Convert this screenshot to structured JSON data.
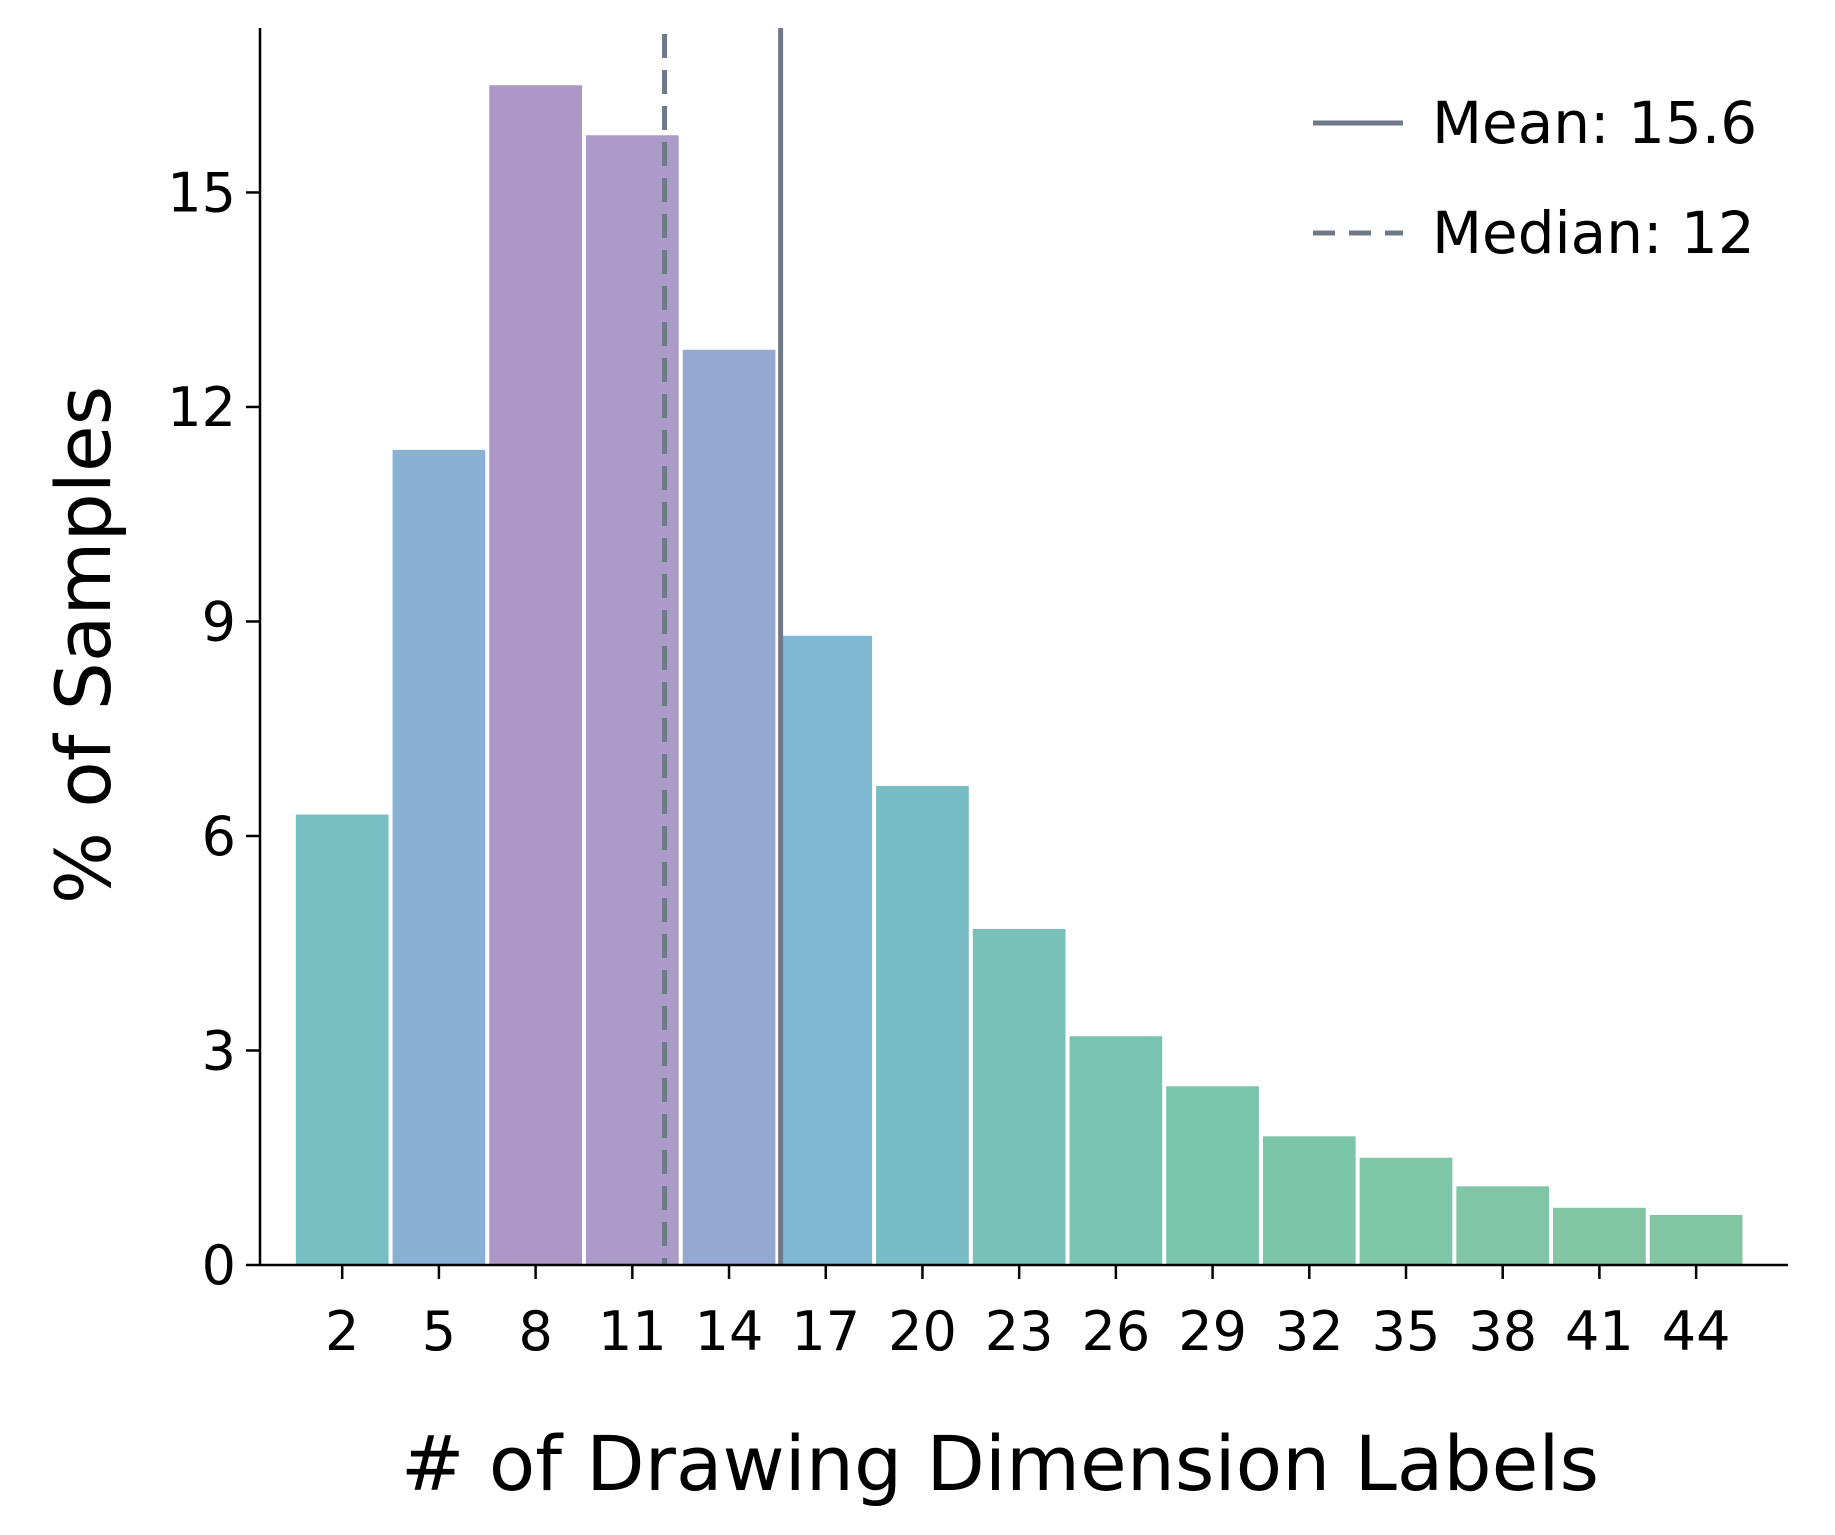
{
  "chart_data": {
    "type": "bar",
    "xlabel": "# of Drawing Dimension Labels",
    "ylabel": "% of Samples",
    "categories": [
      "2",
      "5",
      "8",
      "11",
      "14",
      "17",
      "20",
      "23",
      "26",
      "29",
      "32",
      "35",
      "38",
      "41",
      "44"
    ],
    "x": [
      2,
      5,
      8,
      11,
      14,
      17,
      20,
      23,
      26,
      29,
      32,
      35,
      38,
      41,
      44
    ],
    "values": [
      6.3,
      11.4,
      16.5,
      15.8,
      12.8,
      8.8,
      6.7,
      4.7,
      3.2,
      2.5,
      1.8,
      1.5,
      1.1,
      0.8,
      0.7
    ],
    "bar_colors": [
      "#78bfc4",
      "#89b1d4",
      "#ad97c7",
      "#aa9bc9",
      "#93a9d1",
      "#80b7d2",
      "#78bdc5",
      "#77c1b8",
      "#78c4b0",
      "#7bc5ac",
      "#7dc5aa",
      "#7fc5a8",
      "#80c5a6",
      "#81c5a3",
      "#82c5a2"
    ],
    "yticks": [
      0,
      3,
      6,
      9,
      12,
      15
    ],
    "ylim": [
      0,
      17.3
    ],
    "xlim": [
      -0.55,
      46.85
    ],
    "bin_width": 3,
    "mean": 15.6,
    "median": 12,
    "line_color": "#6f7889",
    "legend": {
      "position": "top-right",
      "mean_label": "Mean: 15.6",
      "median_label": "Median: 12"
    },
    "grid": false
  }
}
